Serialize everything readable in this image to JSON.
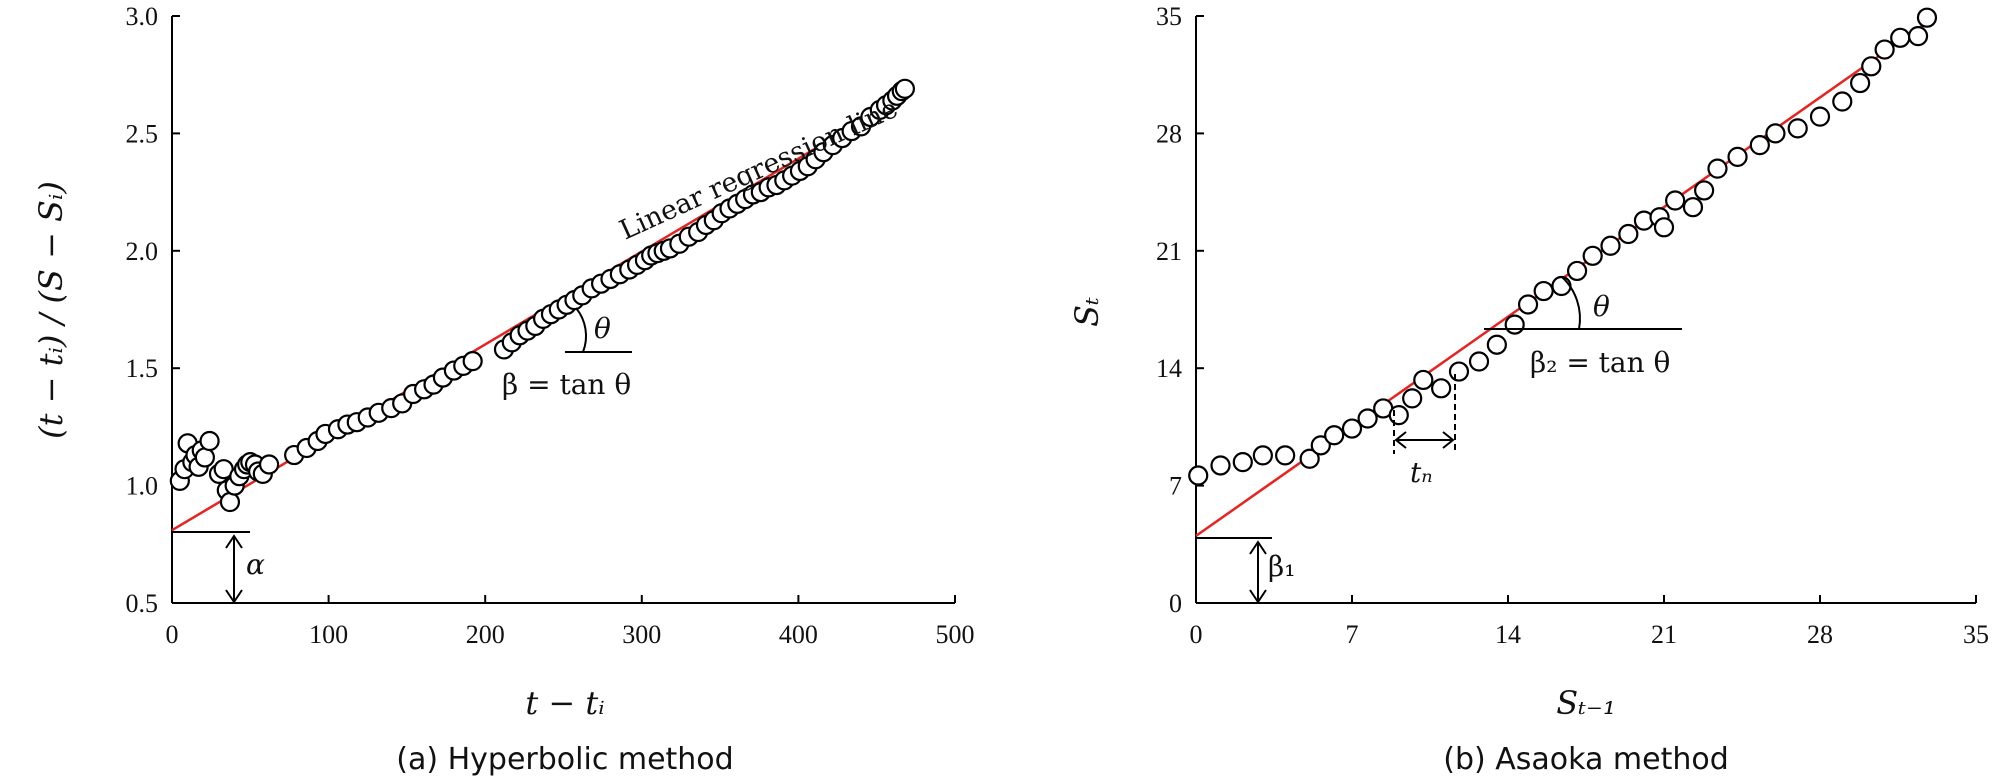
{
  "colors": {
    "regression": "#e8231f",
    "axis": "#000000",
    "marker_stroke": "#000000"
  },
  "chart_data": [
    {
      "type": "scatter",
      "caption": "(a) Hyperbolic method",
      "xlabel": "t − tᵢ",
      "ylabel": "(t − tᵢ) / (S − Sᵢ)",
      "xlim": [
        0,
        500
      ],
      "ylim": [
        0.5,
        3.0
      ],
      "xticks": [
        0,
        100,
        200,
        300,
        400,
        500
      ],
      "xtick_labels": [
        "0",
        "100",
        "200",
        "300",
        "400",
        "500"
      ],
      "yticks": [
        0.5,
        1.0,
        1.5,
        2.0,
        2.5,
        3.0
      ],
      "ytick_labels": [
        "0.5",
        "1.0",
        "1.5",
        "2.0",
        "2.5",
        "3.0"
      ],
      "grid": false,
      "regression_line": {
        "label": "Linear regression line",
        "intercept": 0.81,
        "x_end": 465,
        "y_end": 2.65
      },
      "annotations": {
        "alpha": "α",
        "theta": "θ",
        "beta": "β = tan θ"
      },
      "series": [
        {
          "points": [
            [
              5,
              1.02
            ],
            [
              8,
              1.07
            ],
            [
              10,
              1.18
            ],
            [
              13,
              1.1
            ],
            [
              15,
              1.13
            ],
            [
              17,
              1.08
            ],
            [
              19,
              1.15
            ],
            [
              21,
              1.12
            ],
            [
              24,
              1.19
            ],
            [
              30,
              1.05
            ],
            [
              33,
              1.07
            ],
            [
              35,
              0.98
            ],
            [
              37,
              0.93
            ],
            [
              40,
              1.0
            ],
            [
              43,
              1.04
            ],
            [
              46,
              1.07
            ],
            [
              48,
              1.09
            ],
            [
              50,
              1.1
            ],
            [
              53,
              1.09
            ],
            [
              55,
              1.06
            ],
            [
              58,
              1.05
            ],
            [
              62,
              1.09
            ],
            [
              78,
              1.13
            ],
            [
              86,
              1.16
            ],
            [
              93,
              1.19
            ],
            [
              98,
              1.22
            ],
            [
              106,
              1.24
            ],
            [
              112,
              1.26
            ],
            [
              118,
              1.27
            ],
            [
              125,
              1.29
            ],
            [
              132,
              1.31
            ],
            [
              140,
              1.33
            ],
            [
              147,
              1.35
            ],
            [
              154,
              1.39
            ],
            [
              161,
              1.41
            ],
            [
              167,
              1.43
            ],
            [
              173,
              1.46
            ],
            [
              180,
              1.49
            ],
            [
              186,
              1.51
            ],
            [
              192,
              1.53
            ],
            [
              212,
              1.58
            ],
            [
              217,
              1.61
            ],
            [
              222,
              1.64
            ],
            [
              227,
              1.66
            ],
            [
              232,
              1.68
            ],
            [
              237,
              1.71
            ],
            [
              242,
              1.73
            ],
            [
              247,
              1.75
            ],
            [
              252,
              1.77
            ],
            [
              257,
              1.79
            ],
            [
              262,
              1.81
            ],
            [
              268,
              1.84
            ],
            [
              274,
              1.86
            ],
            [
              280,
              1.88
            ],
            [
              286,
              1.9
            ],
            [
              292,
              1.92
            ],
            [
              297,
              1.94
            ],
            [
              302,
              1.96
            ],
            [
              306,
              1.98
            ],
            [
              310,
              1.99
            ],
            [
              314,
              2.0
            ],
            [
              318,
              2.01
            ],
            [
              324,
              2.03
            ],
            [
              330,
              2.06
            ],
            [
              336,
              2.08
            ],
            [
              341,
              2.11
            ],
            [
              346,
              2.13
            ],
            [
              351,
              2.16
            ],
            [
              356,
              2.18
            ],
            [
              361,
              2.2
            ],
            [
              366,
              2.22
            ],
            [
              371,
              2.24
            ],
            [
              376,
              2.25
            ],
            [
              381,
              2.27
            ],
            [
              386,
              2.28
            ],
            [
              391,
              2.3
            ],
            [
              396,
              2.32
            ],
            [
              401,
              2.34
            ],
            [
              406,
              2.36
            ],
            [
              411,
              2.39
            ],
            [
              416,
              2.42
            ],
            [
              422,
              2.45
            ],
            [
              428,
              2.48
            ],
            [
              434,
              2.51
            ],
            [
              440,
              2.53
            ],
            [
              446,
              2.57
            ],
            [
              452,
              2.6
            ],
            [
              456,
              2.62
            ],
            [
              460,
              2.64
            ],
            [
              463,
              2.66
            ],
            [
              466,
              2.68
            ],
            [
              468,
              2.69
            ]
          ]
        }
      ]
    },
    {
      "type": "scatter",
      "caption": "(b) Asaoka method",
      "xlabel": "Sₜ₋₁",
      "ylabel": "Sₜ",
      "xlim": [
        0,
        35
      ],
      "ylim": [
        0,
        35
      ],
      "xticks": [
        0,
        7,
        14,
        21,
        28,
        35
      ],
      "xtick_labels": [
        "0",
        "7",
        "14",
        "21",
        "28",
        "35"
      ],
      "yticks": [
        0,
        7,
        14,
        21,
        28,
        35
      ],
      "ytick_labels": [
        "0",
        "7",
        "14",
        "21",
        "28",
        "35"
      ],
      "grid": false,
      "regression_line": {
        "intercept": 4.0,
        "x_end": 33.2,
        "y_end": 35.0
      },
      "annotations": {
        "beta1": "β₁",
        "theta": "θ",
        "beta2": "β₂ = tan θ",
        "tn": "tₙ"
      },
      "series": [
        {
          "points": [
            [
              0.1,
              7.6
            ],
            [
              1.1,
              8.2
            ],
            [
              2.1,
              8.4
            ],
            [
              3.0,
              8.8
            ],
            [
              4.0,
              8.8
            ],
            [
              5.1,
              8.6
            ],
            [
              5.6,
              9.4
            ],
            [
              6.2,
              10.0
            ],
            [
              7.0,
              10.4
            ],
            [
              7.7,
              11.0
            ],
            [
              8.4,
              11.6
            ],
            [
              9.1,
              11.2
            ],
            [
              9.7,
              12.2
            ],
            [
              10.2,
              13.3
            ],
            [
              11.0,
              12.8
            ],
            [
              11.8,
              13.8
            ],
            [
              12.7,
              14.4
            ],
            [
              13.5,
              15.4
            ],
            [
              14.3,
              16.6
            ],
            [
              14.9,
              17.8
            ],
            [
              15.6,
              18.6
            ],
            [
              16.4,
              18.9
            ],
            [
              17.1,
              19.8
            ],
            [
              17.8,
              20.7
            ],
            [
              18.6,
              21.3
            ],
            [
              19.4,
              22.0
            ],
            [
              20.1,
              22.8
            ],
            [
              20.8,
              23.0
            ],
            [
              21.0,
              22.4
            ],
            [
              21.5,
              24.0
            ],
            [
              22.3,
              23.6
            ],
            [
              22.8,
              24.6
            ],
            [
              23.4,
              25.9
            ],
            [
              24.3,
              26.6
            ],
            [
              25.3,
              27.3
            ],
            [
              26.0,
              28.0
            ],
            [
              27.0,
              28.3
            ],
            [
              28.0,
              29.0
            ],
            [
              29.0,
              29.9
            ],
            [
              29.8,
              31.0
            ],
            [
              30.3,
              32.0
            ],
            [
              30.9,
              33.0
            ],
            [
              31.6,
              33.7
            ],
            [
              32.4,
              33.8
            ],
            [
              32.8,
              34.9
            ]
          ]
        }
      ]
    }
  ]
}
